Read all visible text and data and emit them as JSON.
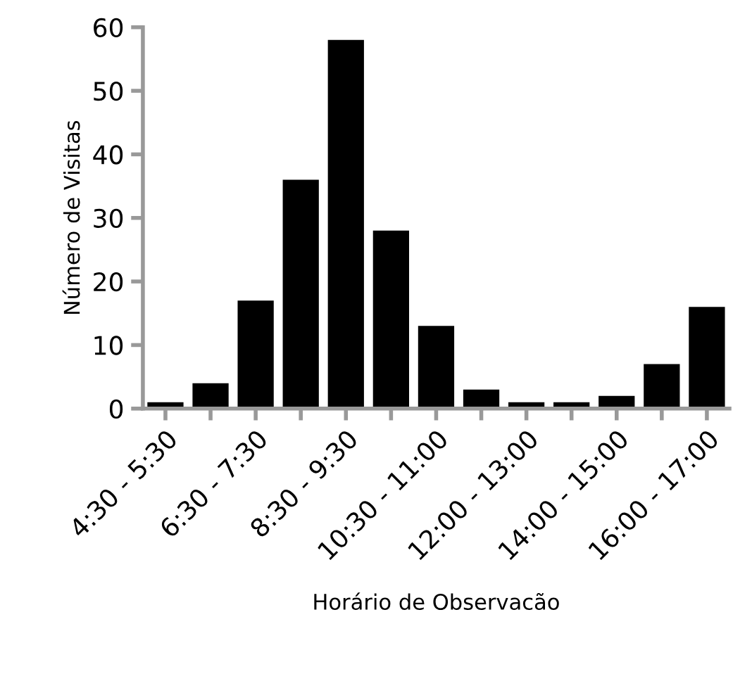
{
  "chart_data": {
    "type": "bar",
    "xlabel": "Horário de Observacão",
    "ylabel": "Número de Visitas",
    "categories": [
      "4:30 - 5:30",
      null,
      "6:30 - 7:30",
      null,
      "8:30 - 9:30",
      null,
      "10:30 - 11:00",
      null,
      "12:00 - 13:00",
      null,
      "14:00 - 15:00",
      null,
      "16:00 - 17:00"
    ],
    "values": [
      1,
      4,
      17,
      36,
      58,
      28,
      13,
      3,
      1,
      1,
      2,
      7,
      16
    ],
    "color": "#000000",
    "ylim": [
      0,
      60
    ],
    "yticks": [
      0,
      10,
      20,
      30,
      40,
      50,
      60
    ],
    "grid": false,
    "legend": false
  }
}
